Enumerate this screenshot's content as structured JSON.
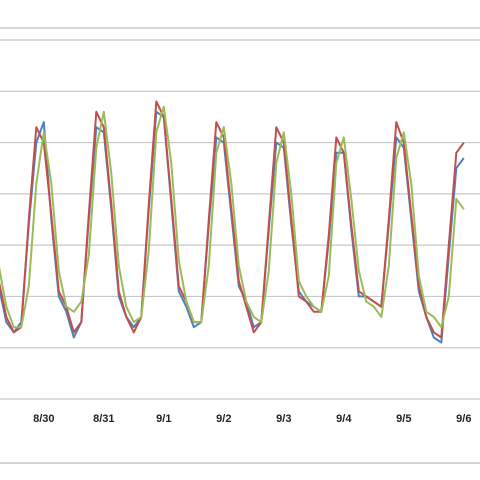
{
  "chart_data": {
    "type": "line",
    "x": [
      -0.75,
      -0.625,
      -0.5,
      -0.375,
      -0.25,
      -0.125,
      0,
      0.125,
      0.25,
      0.375,
      0.5,
      0.625,
      0.75,
      0.875,
      1,
      1.125,
      1.25,
      1.375,
      1.5,
      1.625,
      1.75,
      1.875,
      2,
      2.125,
      2.25,
      2.375,
      2.5,
      2.625,
      2.75,
      2.875,
      3,
      3.125,
      3.25,
      3.375,
      3.5,
      3.625,
      3.75,
      3.875,
      4,
      4.125,
      4.25,
      4.375,
      4.5,
      4.625,
      4.75,
      4.875,
      5,
      5.125,
      5.25,
      5.375,
      5.5,
      5.625,
      5.75,
      5.875,
      6,
      6.125,
      6.25,
      6.375,
      6.5,
      6.625,
      6.75,
      6.875,
      7
    ],
    "series": [
      {
        "color": "#4f81bd",
        "values": [
          2.2,
          1.5,
          1.3,
          1.5,
          3.4,
          5.0,
          5.4,
          3.5,
          2.0,
          1.7,
          1.2,
          1.5,
          3.5,
          5.3,
          5.2,
          3.7,
          2.0,
          1.6,
          1.4,
          1.6,
          3.7,
          5.6,
          5.5,
          3.8,
          2.1,
          1.8,
          1.4,
          1.5,
          3.4,
          5.1,
          5.0,
          3.6,
          2.2,
          1.9,
          1.4,
          1.5,
          3.3,
          5.0,
          4.9,
          3.4,
          2.1,
          1.9,
          1.8,
          1.7,
          3.1,
          4.8,
          4.8,
          3.3,
          2.0,
          2.0,
          1.9,
          1.8,
          3.4,
          5.1,
          4.9,
          3.5,
          2.1,
          1.6,
          1.2,
          1.1,
          2.8,
          4.5,
          4.7
        ]
      },
      {
        "color": "#c0504d",
        "values": [
          2.3,
          1.6,
          1.3,
          1.4,
          3.5,
          5.3,
          5.0,
          3.6,
          2.1,
          1.8,
          1.3,
          1.5,
          3.6,
          5.6,
          5.3,
          3.8,
          2.1,
          1.6,
          1.3,
          1.6,
          3.8,
          5.8,
          5.5,
          3.9,
          2.2,
          1.9,
          1.5,
          1.5,
          3.5,
          5.4,
          5.1,
          3.7,
          2.3,
          1.8,
          1.3,
          1.5,
          3.4,
          5.3,
          5.0,
          3.5,
          2.0,
          1.9,
          1.7,
          1.7,
          3.2,
          5.1,
          4.8,
          3.4,
          2.1,
          2.0,
          1.9,
          1.8,
          3.5,
          5.4,
          5.0,
          3.6,
          2.2,
          1.6,
          1.3,
          1.2,
          3.0,
          4.8,
          5.0
        ]
      },
      {
        "color": "#9bbb59",
        "values": [
          2.6,
          1.8,
          1.4,
          1.4,
          2.2,
          4.2,
          5.2,
          4.2,
          2.5,
          1.8,
          1.7,
          1.9,
          2.8,
          4.9,
          5.6,
          4.4,
          2.6,
          1.8,
          1.5,
          1.6,
          2.9,
          5.2,
          5.7,
          4.6,
          2.7,
          1.9,
          1.5,
          1.5,
          2.6,
          4.8,
          5.3,
          4.2,
          2.6,
          1.9,
          1.6,
          1.5,
          2.5,
          4.6,
          5.2,
          4.0,
          2.3,
          2.0,
          1.8,
          1.7,
          2.4,
          4.6,
          5.1,
          3.9,
          2.5,
          1.9,
          1.8,
          1.6,
          2.6,
          4.7,
          5.2,
          4.2,
          2.4,
          1.7,
          1.6,
          1.4,
          2.0,
          3.9,
          3.7
        ]
      }
    ],
    "xlim": [
      -0.73,
      7.27
    ],
    "xticks": [
      {
        "value": 0,
        "label": "8/30"
      },
      {
        "value": 1,
        "label": "8/31"
      },
      {
        "value": 2,
        "label": "9/1"
      },
      {
        "value": 3,
        "label": "9/2"
      },
      {
        "value": 4,
        "label": "9/3"
      },
      {
        "value": 5,
        "label": "9/4"
      },
      {
        "value": 6,
        "label": "9/5"
      },
      {
        "value": 7,
        "label": "9/6"
      }
    ],
    "ylim": [
      0,
      7
    ],
    "yticks": [
      0,
      1,
      2,
      3,
      4,
      5,
      6,
      7
    ],
    "grid": true
  }
}
